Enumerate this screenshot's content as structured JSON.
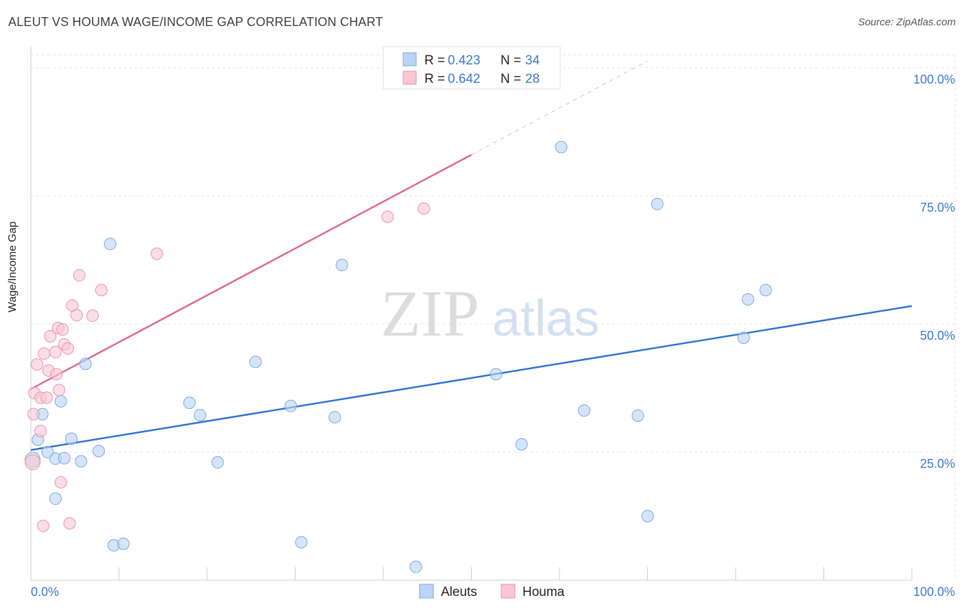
{
  "title": "ALEUT VS HOUMA WAGE/INCOME GAP CORRELATION CHART",
  "source": "Source: ZipAtlas.com",
  "watermark": {
    "zip": "ZIP",
    "atlas": "atlas"
  },
  "colors": {
    "aleut_fill": "#b9d4f5",
    "aleut_stroke": "#7aa7de",
    "aleut_line": "#2e72d2",
    "houma_fill": "#f8c6d4",
    "houma_stroke": "#eb92ac",
    "houma_line": "#e0658d",
    "value_text": "#3a78cc"
  },
  "legend_top": [
    {
      "r_label": "R =",
      "r_value": "0.423",
      "n_label": "N =",
      "n_value": "34"
    },
    {
      "r_label": "R =",
      "r_value": "0.642",
      "n_label": "N =",
      "n_value": "28"
    }
  ],
  "chart_data": {
    "type": "scatter",
    "title": "ALEUT VS HOUMA WAGE/INCOME GAP CORRELATION CHART",
    "xlabel": "",
    "ylabel": "Wage/Income Gap",
    "xlim": [
      0,
      100
    ],
    "ylim": [
      0,
      100
    ],
    "x_tick_labels": [
      {
        "value": 0,
        "label": "0.0%"
      },
      {
        "value": 100,
        "label": "100.0%"
      }
    ],
    "y_tick_labels": [
      {
        "value": 25,
        "label": "25.0%"
      },
      {
        "value": 50,
        "label": "50.0%"
      },
      {
        "value": 75,
        "label": "75.0%"
      },
      {
        "value": 100,
        "label": "100.0%"
      }
    ],
    "grid": true,
    "legend_position": "bottom-center",
    "series": [
      {
        "name": "Aleuts",
        "r": 0.423,
        "n": 34,
        "trend": {
          "x0": 0,
          "y0": 25.4,
          "x1": 100,
          "y1": 53.5,
          "dashed_extension": false
        },
        "points": [
          [
            0.2,
            23.5
          ],
          [
            0.8,
            27.4
          ],
          [
            1.3,
            32.4
          ],
          [
            1.9,
            25.0
          ],
          [
            2.8,
            15.9
          ],
          [
            2.8,
            23.7
          ],
          [
            3.4,
            34.9
          ],
          [
            3.8,
            23.8
          ],
          [
            4.6,
            27.6
          ],
          [
            5.7,
            23.2
          ],
          [
            6.2,
            42.2
          ],
          [
            7.7,
            25.2
          ],
          [
            9.0,
            65.6
          ],
          [
            9.4,
            6.8
          ],
          [
            10.5,
            7.1
          ],
          [
            18.0,
            34.6
          ],
          [
            19.2,
            32.2
          ],
          [
            21.2,
            23.0
          ],
          [
            25.5,
            42.6
          ],
          [
            29.5,
            34.0
          ],
          [
            30.7,
            7.4
          ],
          [
            34.5,
            31.8
          ],
          [
            35.3,
            61.5
          ],
          [
            43.7,
            2.6
          ],
          [
            52.8,
            40.2
          ],
          [
            55.7,
            26.5
          ],
          [
            60.2,
            84.5
          ],
          [
            62.8,
            33.1
          ],
          [
            68.9,
            32.1
          ],
          [
            70.0,
            12.5
          ],
          [
            71.1,
            73.4
          ],
          [
            80.9,
            47.3
          ],
          [
            81.4,
            54.8
          ],
          [
            83.4,
            56.6
          ]
        ]
      },
      {
        "name": "Houma",
        "r": 0.642,
        "n": 28,
        "trend": {
          "x0": 0,
          "y0": 37.3,
          "x1": 50,
          "y1": 83.0,
          "dashed_to_x": 70,
          "dashed_to_y": 101.3
        },
        "points": [
          [
            0.2,
            23.0
          ],
          [
            0.3,
            32.4
          ],
          [
            0.4,
            36.5
          ],
          [
            0.7,
            42.1
          ],
          [
            1.1,
            35.6
          ],
          [
            1.1,
            29.1
          ],
          [
            1.4,
            10.6
          ],
          [
            1.5,
            44.2
          ],
          [
            1.8,
            35.6
          ],
          [
            2.0,
            40.9
          ],
          [
            2.2,
            47.6
          ],
          [
            2.8,
            44.5
          ],
          [
            2.9,
            40.2
          ],
          [
            3.1,
            49.2
          ],
          [
            3.2,
            37.1
          ],
          [
            3.4,
            19.1
          ],
          [
            3.6,
            48.9
          ],
          [
            3.8,
            46.0
          ],
          [
            4.2,
            45.2
          ],
          [
            4.4,
            11.1
          ],
          [
            4.7,
            53.6
          ],
          [
            5.2,
            51.7
          ],
          [
            5.5,
            59.5
          ],
          [
            7.0,
            51.6
          ],
          [
            8.0,
            56.6
          ],
          [
            14.3,
            63.7
          ],
          [
            40.5,
            70.9
          ],
          [
            44.6,
            72.5
          ]
        ]
      }
    ]
  }
}
